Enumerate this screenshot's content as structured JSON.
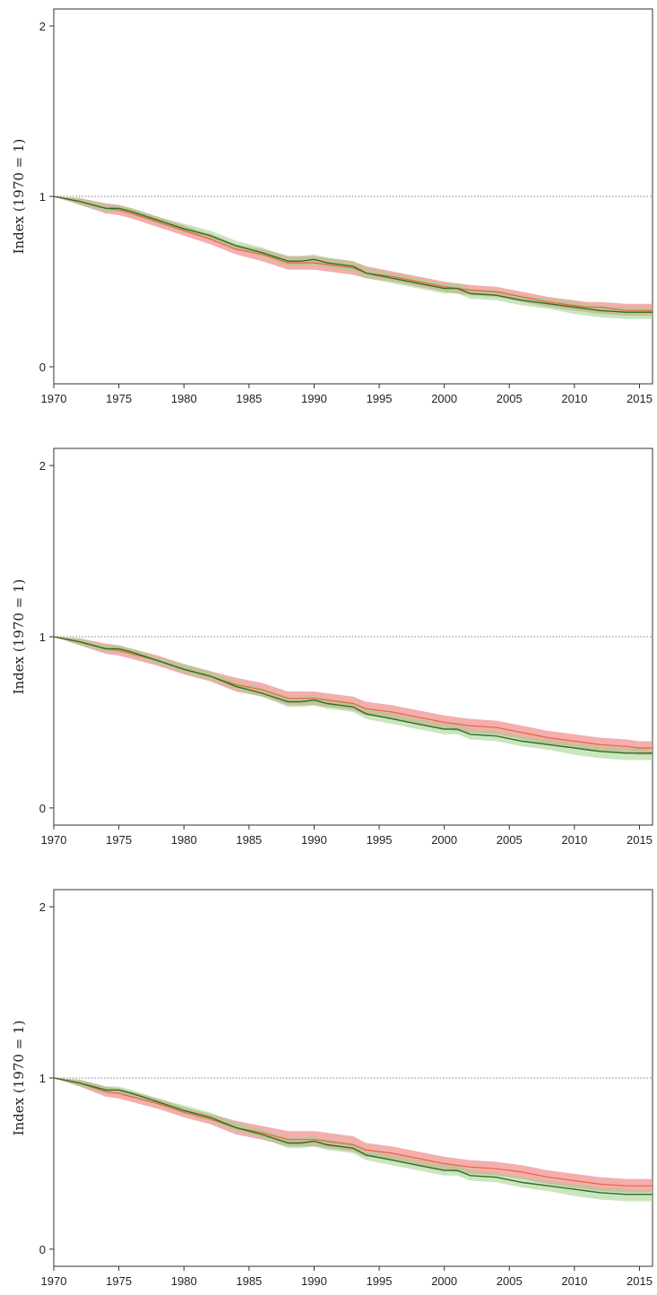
{
  "chart_data": [
    {
      "type": "line",
      "xlabel": "",
      "ylabel": "Index (1970 = 1)",
      "xlim": [
        1970,
        2016
      ],
      "ylim": [
        -0.1,
        2.1
      ],
      "xticks": [
        1970,
        1975,
        1980,
        1985,
        1990,
        1995,
        2000,
        2005,
        2010,
        2015
      ],
      "yticks": [
        0,
        1,
        2
      ],
      "reference_line": 1,
      "grid": false,
      "legend": "none",
      "x": [
        1970,
        1972,
        1974,
        1975,
        1976,
        1978,
        1980,
        1982,
        1984,
        1986,
        1988,
        1989,
        1990,
        1991,
        1993,
        1994,
        1996,
        1998,
        2000,
        2001,
        2002,
        2004,
        2006,
        2008,
        2010,
        2011,
        2012,
        2014,
        2015,
        2016
      ],
      "series": [
        {
          "color": "#e8643c",
          "band_color": "#f08c8c",
          "values": [
            1.0,
            0.97,
            0.93,
            0.92,
            0.9,
            0.85,
            0.8,
            0.75,
            0.69,
            0.66,
            0.61,
            0.61,
            0.61,
            0.6,
            0.58,
            0.55,
            0.53,
            0.5,
            0.47,
            0.46,
            0.45,
            0.44,
            0.41,
            0.38,
            0.36,
            0.35,
            0.35,
            0.33,
            0.33,
            0.33
          ],
          "lower": [
            1.0,
            0.95,
            0.9,
            0.89,
            0.87,
            0.82,
            0.77,
            0.72,
            0.66,
            0.62,
            0.57,
            0.57,
            0.57,
            0.56,
            0.54,
            0.52,
            0.5,
            0.47,
            0.44,
            0.43,
            0.42,
            0.41,
            0.38,
            0.35,
            0.33,
            0.32,
            0.31,
            0.3,
            0.3,
            0.3
          ],
          "upper": [
            1.0,
            0.99,
            0.96,
            0.95,
            0.93,
            0.88,
            0.83,
            0.78,
            0.72,
            0.69,
            0.65,
            0.65,
            0.65,
            0.64,
            0.62,
            0.59,
            0.56,
            0.53,
            0.5,
            0.49,
            0.48,
            0.47,
            0.44,
            0.41,
            0.39,
            0.38,
            0.38,
            0.37,
            0.37,
            0.37
          ]
        },
        {
          "color": "#2e6e20",
          "band_color": "#9ed28c",
          "values": [
            1.0,
            0.97,
            0.93,
            0.93,
            0.91,
            0.86,
            0.81,
            0.77,
            0.71,
            0.67,
            0.62,
            0.62,
            0.63,
            0.61,
            0.59,
            0.55,
            0.52,
            0.49,
            0.46,
            0.46,
            0.43,
            0.42,
            0.39,
            0.37,
            0.35,
            0.34,
            0.33,
            0.32,
            0.32,
            0.32
          ],
          "lower": [
            1.0,
            0.95,
            0.91,
            0.91,
            0.89,
            0.84,
            0.79,
            0.75,
            0.69,
            0.65,
            0.59,
            0.59,
            0.6,
            0.58,
            0.56,
            0.52,
            0.49,
            0.46,
            0.43,
            0.43,
            0.4,
            0.39,
            0.36,
            0.34,
            0.31,
            0.3,
            0.29,
            0.28,
            0.28,
            0.28
          ],
          "upper": [
            1.0,
            0.99,
            0.95,
            0.95,
            0.93,
            0.88,
            0.84,
            0.8,
            0.74,
            0.7,
            0.65,
            0.65,
            0.66,
            0.64,
            0.62,
            0.58,
            0.55,
            0.52,
            0.49,
            0.49,
            0.46,
            0.45,
            0.42,
            0.4,
            0.38,
            0.37,
            0.36,
            0.35,
            0.35,
            0.35
          ]
        }
      ]
    },
    {
      "type": "line",
      "xlabel": "",
      "ylabel": "Index (1970 = 1)",
      "xlim": [
        1970,
        2016
      ],
      "ylim": [
        -0.1,
        2.1
      ],
      "xticks": [
        1970,
        1975,
        1980,
        1985,
        1990,
        1995,
        2000,
        2005,
        2010,
        2015
      ],
      "yticks": [
        0,
        1,
        2
      ],
      "reference_line": 1,
      "grid": false,
      "legend": "none",
      "x": [
        1970,
        1972,
        1974,
        1975,
        1976,
        1978,
        1980,
        1982,
        1984,
        1986,
        1988,
        1989,
        1990,
        1991,
        1993,
        1994,
        1996,
        1998,
        2000,
        2001,
        2002,
        2004,
        2006,
        2008,
        2010,
        2011,
        2012,
        2014,
        2015,
        2016
      ],
      "series": [
        {
          "color": "#e8643c",
          "band_color": "#f08c8c",
          "values": [
            1.0,
            0.97,
            0.93,
            0.92,
            0.9,
            0.86,
            0.81,
            0.77,
            0.72,
            0.69,
            0.64,
            0.64,
            0.64,
            0.63,
            0.61,
            0.58,
            0.56,
            0.53,
            0.5,
            0.49,
            0.48,
            0.47,
            0.44,
            0.41,
            0.39,
            0.38,
            0.37,
            0.36,
            0.35,
            0.35
          ],
          "lower": [
            1.0,
            0.95,
            0.9,
            0.89,
            0.87,
            0.83,
            0.78,
            0.74,
            0.68,
            0.65,
            0.6,
            0.6,
            0.6,
            0.59,
            0.57,
            0.54,
            0.52,
            0.49,
            0.46,
            0.45,
            0.44,
            0.43,
            0.4,
            0.37,
            0.35,
            0.34,
            0.33,
            0.32,
            0.31,
            0.31
          ],
          "upper": [
            1.0,
            0.99,
            0.96,
            0.95,
            0.93,
            0.89,
            0.84,
            0.8,
            0.76,
            0.73,
            0.68,
            0.68,
            0.68,
            0.67,
            0.65,
            0.62,
            0.6,
            0.57,
            0.54,
            0.53,
            0.52,
            0.51,
            0.48,
            0.45,
            0.43,
            0.42,
            0.41,
            0.4,
            0.39,
            0.39
          ]
        },
        {
          "color": "#2e6e20",
          "band_color": "#9ed28c",
          "values": [
            1.0,
            0.97,
            0.93,
            0.93,
            0.91,
            0.86,
            0.81,
            0.77,
            0.71,
            0.67,
            0.62,
            0.62,
            0.63,
            0.61,
            0.59,
            0.55,
            0.52,
            0.49,
            0.46,
            0.46,
            0.43,
            0.42,
            0.39,
            0.37,
            0.35,
            0.34,
            0.33,
            0.32,
            0.32,
            0.32
          ],
          "lower": [
            1.0,
            0.95,
            0.91,
            0.91,
            0.89,
            0.84,
            0.79,
            0.75,
            0.69,
            0.65,
            0.59,
            0.59,
            0.6,
            0.58,
            0.56,
            0.52,
            0.49,
            0.46,
            0.43,
            0.43,
            0.4,
            0.39,
            0.36,
            0.34,
            0.31,
            0.3,
            0.29,
            0.28,
            0.28,
            0.28
          ],
          "upper": [
            1.0,
            0.99,
            0.95,
            0.95,
            0.93,
            0.88,
            0.84,
            0.8,
            0.74,
            0.7,
            0.65,
            0.65,
            0.66,
            0.64,
            0.62,
            0.58,
            0.55,
            0.52,
            0.49,
            0.49,
            0.46,
            0.45,
            0.42,
            0.4,
            0.38,
            0.37,
            0.36,
            0.35,
            0.35,
            0.35
          ]
        }
      ]
    },
    {
      "type": "line",
      "xlabel": "",
      "ylabel": "Index (1970 = 1)",
      "xlim": [
        1970,
        2016
      ],
      "ylim": [
        -0.1,
        2.1
      ],
      "xticks": [
        1970,
        1975,
        1980,
        1985,
        1990,
        1995,
        2000,
        2005,
        2010,
        2015
      ],
      "yticks": [
        0,
        1,
        2
      ],
      "reference_line": 1,
      "grid": false,
      "legend": "none",
      "x": [
        1970,
        1972,
        1974,
        1975,
        1976,
        1978,
        1980,
        1982,
        1984,
        1986,
        1988,
        1989,
        1990,
        1991,
        1993,
        1994,
        1996,
        1998,
        2000,
        2001,
        2002,
        2004,
        2006,
        2008,
        2010,
        2011,
        2012,
        2014,
        2015,
        2016
      ],
      "series": [
        {
          "color": "#e8643c",
          "band_color": "#f08c8c",
          "values": [
            1.0,
            0.97,
            0.92,
            0.91,
            0.89,
            0.85,
            0.8,
            0.76,
            0.71,
            0.68,
            0.64,
            0.64,
            0.64,
            0.63,
            0.61,
            0.58,
            0.56,
            0.53,
            0.5,
            0.49,
            0.48,
            0.47,
            0.45,
            0.42,
            0.4,
            0.39,
            0.38,
            0.37,
            0.37,
            0.37
          ],
          "lower": [
            1.0,
            0.95,
            0.89,
            0.88,
            0.86,
            0.82,
            0.77,
            0.73,
            0.67,
            0.64,
            0.6,
            0.6,
            0.6,
            0.59,
            0.57,
            0.54,
            0.52,
            0.49,
            0.46,
            0.45,
            0.44,
            0.43,
            0.41,
            0.38,
            0.36,
            0.35,
            0.34,
            0.33,
            0.33,
            0.33
          ],
          "upper": [
            1.0,
            0.99,
            0.95,
            0.94,
            0.92,
            0.88,
            0.83,
            0.79,
            0.75,
            0.72,
            0.69,
            0.69,
            0.69,
            0.68,
            0.66,
            0.62,
            0.6,
            0.57,
            0.54,
            0.53,
            0.52,
            0.51,
            0.49,
            0.46,
            0.44,
            0.43,
            0.42,
            0.41,
            0.41,
            0.41
          ]
        },
        {
          "color": "#2e6e20",
          "band_color": "#9ed28c",
          "values": [
            1.0,
            0.97,
            0.93,
            0.93,
            0.91,
            0.86,
            0.81,
            0.77,
            0.71,
            0.67,
            0.62,
            0.62,
            0.63,
            0.61,
            0.59,
            0.55,
            0.52,
            0.49,
            0.46,
            0.46,
            0.43,
            0.42,
            0.39,
            0.37,
            0.35,
            0.34,
            0.33,
            0.32,
            0.32,
            0.32
          ],
          "lower": [
            1.0,
            0.95,
            0.91,
            0.91,
            0.89,
            0.84,
            0.79,
            0.75,
            0.69,
            0.65,
            0.59,
            0.59,
            0.6,
            0.58,
            0.56,
            0.52,
            0.49,
            0.46,
            0.43,
            0.43,
            0.4,
            0.39,
            0.36,
            0.34,
            0.31,
            0.3,
            0.29,
            0.28,
            0.28,
            0.28
          ],
          "upper": [
            1.0,
            0.99,
            0.95,
            0.95,
            0.93,
            0.88,
            0.84,
            0.8,
            0.74,
            0.7,
            0.65,
            0.65,
            0.66,
            0.64,
            0.62,
            0.58,
            0.55,
            0.52,
            0.49,
            0.49,
            0.46,
            0.45,
            0.42,
            0.4,
            0.38,
            0.37,
            0.36,
            0.35,
            0.35,
            0.35
          ]
        }
      ]
    }
  ]
}
